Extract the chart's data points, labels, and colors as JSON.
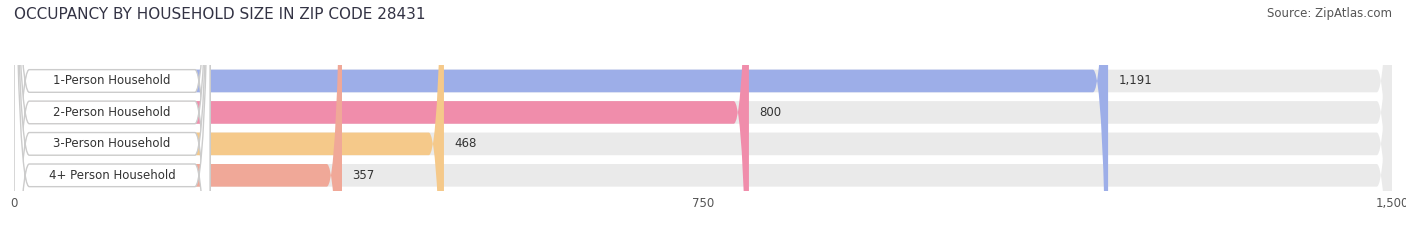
{
  "title": "OCCUPANCY BY HOUSEHOLD SIZE IN ZIP CODE 28431",
  "source": "Source: ZipAtlas.com",
  "categories": [
    "1-Person Household",
    "2-Person Household",
    "3-Person Household",
    "4+ Person Household"
  ],
  "values": [
    1191,
    800,
    468,
    357
  ],
  "bar_colors": [
    "#9daee8",
    "#f08dab",
    "#f5c98a",
    "#f0a898"
  ],
  "bg_bar_color": "#eaeaea",
  "xlim": [
    0,
    1500
  ],
  "xticks": [
    0,
    750,
    1500
  ],
  "title_fontsize": 11,
  "source_fontsize": 8.5,
  "label_fontsize": 8.5,
  "value_fontsize": 8.5,
  "tick_fontsize": 8.5,
  "figsize": [
    14.06,
    2.33
  ],
  "dpi": 100
}
